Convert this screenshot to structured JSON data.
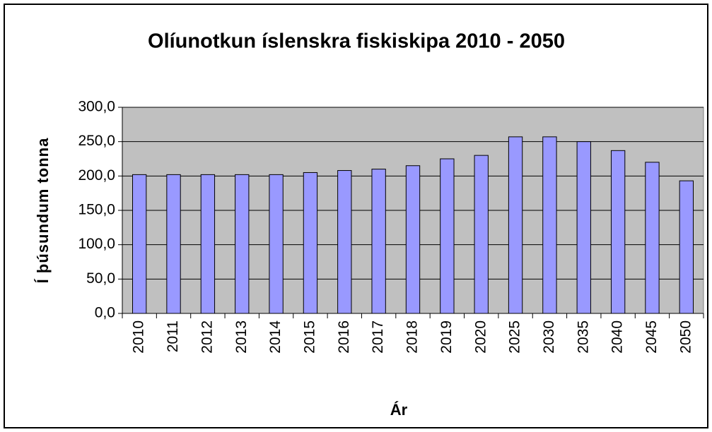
{
  "chart_data": {
    "type": "bar",
    "title": "Olíunotkun íslenskra fiskiskipa 2010 - 2050",
    "x_label": "Ár",
    "y_label": "Í þúsundum tonna",
    "categories": [
      "2010",
      "2011",
      "2012",
      "2013",
      "2014",
      "2015",
      "2016",
      "2017",
      "2018",
      "2019",
      "2020",
      "2025",
      "2030",
      "2035",
      "2040",
      "2045",
      "2050"
    ],
    "values": [
      202,
      202,
      202,
      202,
      202,
      205,
      208,
      210,
      215,
      225,
      230,
      257,
      257,
      250,
      237,
      220,
      193
    ],
    "color": "#9999ff",
    "ylim": [
      0,
      300
    ],
    "yticks": [
      {
        "value": 0,
        "label": "0,0"
      },
      {
        "value": 50,
        "label": "50,0"
      },
      {
        "value": 100,
        "label": "100,0"
      },
      {
        "value": 150,
        "label": "150,0"
      },
      {
        "value": 200,
        "label": "200,0"
      },
      {
        "value": 250,
        "label": "250,0"
      },
      {
        "value": 300,
        "label": "300,0"
      }
    ],
    "grid": true
  }
}
